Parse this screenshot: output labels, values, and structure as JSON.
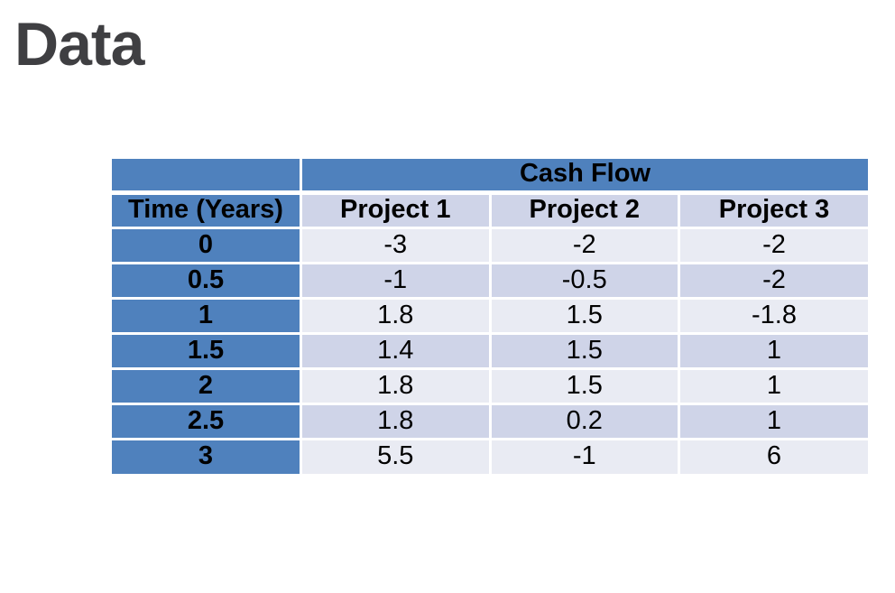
{
  "slide": {
    "title": "Data"
  },
  "table": {
    "spanning_header": "Cash Flow",
    "row_header_label": "Time (Years)",
    "column_headers": [
      "Project 1",
      "Project 2",
      "Project 3"
    ],
    "rows": [
      {
        "time": "0",
        "values": [
          "-3",
          "-2",
          "-2"
        ]
      },
      {
        "time": "0.5",
        "values": [
          "-1",
          "-0.5",
          "-2"
        ]
      },
      {
        "time": "1",
        "values": [
          "1.8",
          "1.5",
          "-1.8"
        ]
      },
      {
        "time": "1.5",
        "values": [
          "1.4",
          "1.5",
          "1"
        ]
      },
      {
        "time": "2",
        "values": [
          "1.8",
          "1.5",
          "1"
        ]
      },
      {
        "time": "2.5",
        "values": [
          "1.8",
          "0.2",
          "1"
        ]
      },
      {
        "time": "3",
        "values": [
          "5.5",
          "-1",
          "6"
        ]
      }
    ]
  },
  "colors": {
    "accent_blue": "#4f81bd",
    "band_dark": "#cfd4e8",
    "band_light": "#e9ebf3",
    "header_text": "#ffffff",
    "body_text": "#000000",
    "title_text": "#3f3f42",
    "background": "#ffffff"
  }
}
